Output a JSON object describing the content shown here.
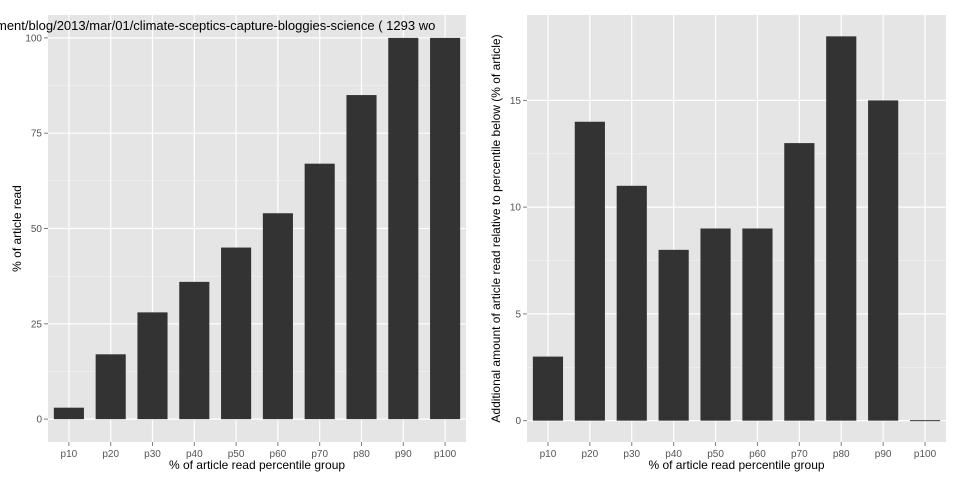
{
  "chart_data": [
    {
      "type": "bar",
      "title": "ment/blog/2013/mar/01/climate-sceptics-capture-bloggies-science ( 1293 wo",
      "xlabel": "% of article read percentile group",
      "ylabel": "% of article read",
      "categories": [
        "p10",
        "p20",
        "p30",
        "p40",
        "p50",
        "p60",
        "p70",
        "p80",
        "p90",
        "p100"
      ],
      "values": [
        3,
        17,
        28,
        36,
        45,
        54,
        67,
        85,
        100,
        100
      ],
      "ylim": [
        -6,
        106
      ],
      "yticks": [
        0,
        25,
        50,
        75,
        100
      ],
      "ytick_labels": [
        "0",
        "25",
        "50",
        "75",
        "100"
      ],
      "grid": true,
      "bar_color": "#333333",
      "panel_bg": "#e5e5e5"
    },
    {
      "type": "bar",
      "title": "",
      "xlabel": "% of article read percentile group",
      "ylabel": "Additional amount of article read relative to percentile below (% of article)",
      "categories": [
        "p10",
        "p20",
        "p30",
        "p40",
        "p50",
        "p60",
        "p70",
        "p80",
        "p90",
        "p100"
      ],
      "values": [
        3,
        14,
        11,
        8,
        9,
        9,
        13,
        18,
        15,
        0
      ],
      "ylim": [
        -1,
        19
      ],
      "yticks": [
        0,
        5,
        10,
        15
      ],
      "ytick_labels": [
        "0",
        "5",
        "10",
        "15"
      ],
      "grid": true,
      "bar_color": "#333333",
      "panel_bg": "#e5e5e5"
    }
  ]
}
